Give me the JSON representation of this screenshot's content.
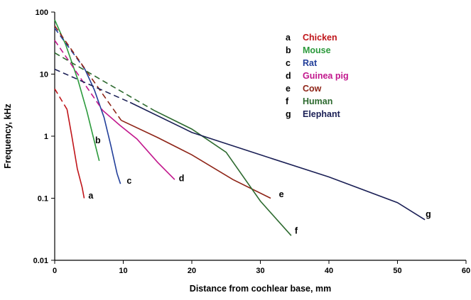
{
  "chart_data": {
    "type": "line",
    "xlabel": "Distance from cochlear base, mm",
    "ylabel": "Frequency, kHz",
    "xlim": [
      0,
      60
    ],
    "ylim": [
      0.01,
      100
    ],
    "yscale": "log",
    "x_ticks": [
      0,
      10,
      20,
      30,
      40,
      50,
      60
    ],
    "y_ticks": [
      0.01,
      0.1,
      1,
      10,
      100
    ],
    "x_tick_labels": [
      "0",
      "10",
      "20",
      "30",
      "40",
      "50",
      "60"
    ],
    "y_tick_labels": [
      "0.01",
      "0.1",
      "1",
      "10",
      "100"
    ],
    "grid": false,
    "legend_position": "top-right",
    "series": [
      {
        "letter": "a",
        "name": "Chicken",
        "color": "#c0151a",
        "dashed": [
          [
            0,
            5.8
          ],
          [
            1.8,
            2.7
          ]
        ],
        "solid": [
          [
            1.8,
            2.7
          ],
          [
            2.5,
            1.0
          ],
          [
            3.3,
            0.3
          ],
          [
            4.0,
            0.15
          ],
          [
            4.3,
            0.1
          ]
        ]
      },
      {
        "letter": "b",
        "name": "Mouse",
        "color": "#2c9a3c",
        "dashed": [],
        "solid": [
          [
            0,
            75
          ],
          [
            1.6,
            30
          ],
          [
            3.4,
            8
          ],
          [
            4.7,
            2.5
          ],
          [
            5.6,
            1.0
          ],
          [
            6.5,
            0.4
          ]
        ]
      },
      {
        "letter": "c",
        "name": "Rat",
        "color": "#223f9a",
        "dashed": [
          [
            0,
            55
          ],
          [
            4.4,
            12
          ]
        ],
        "solid": [
          [
            4.4,
            12
          ],
          [
            5.8,
            5.5
          ],
          [
            7.2,
            2.0
          ],
          [
            8.2,
            0.7
          ],
          [
            9.1,
            0.25
          ],
          [
            9.6,
            0.17
          ]
        ]
      },
      {
        "letter": "d",
        "name": "Guinea pig",
        "color": "#c2178d",
        "dashed": [
          [
            0,
            35
          ],
          [
            7,
            2.6
          ]
        ],
        "solid": [
          [
            7,
            2.6
          ],
          [
            9.5,
            1.5
          ],
          [
            12,
            0.9
          ],
          [
            15,
            0.38
          ],
          [
            17.5,
            0.2
          ]
        ]
      },
      {
        "letter": "e",
        "name": "Cow",
        "color": "#8e2417",
        "dashed": [
          [
            0,
            60
          ],
          [
            9.7,
            1.8
          ]
        ],
        "solid": [
          [
            9.7,
            1.8
          ],
          [
            15,
            0.95
          ],
          [
            20,
            0.5
          ],
          [
            26,
            0.2
          ],
          [
            31.5,
            0.1
          ]
        ]
      },
      {
        "letter": "f",
        "name": "Human",
        "color": "#2d6a2f",
        "dashed": [
          [
            0,
            22
          ],
          [
            14.5,
            2.6
          ]
        ],
        "solid": [
          [
            14.5,
            2.6
          ],
          [
            20,
            1.3
          ],
          [
            25,
            0.55
          ],
          [
            30,
            0.09
          ],
          [
            34.5,
            0.025
          ]
        ]
      },
      {
        "letter": "g",
        "name": "Elephant",
        "color": "#1a1f55",
        "dashed": [
          [
            0,
            12
          ],
          [
            11,
            3.5
          ]
        ],
        "solid": [
          [
            11,
            3.5
          ],
          [
            20,
            1.15
          ],
          [
            30,
            0.5
          ],
          [
            40,
            0.22
          ],
          [
            50,
            0.085
          ],
          [
            54,
            0.045
          ]
        ]
      }
    ],
    "curve_label_anchors": {
      "a": [
        4.6,
        0.11
      ],
      "b": [
        5.6,
        0.85
      ],
      "c": [
        10.2,
        0.19
      ],
      "d": [
        17.8,
        0.21
      ],
      "e": [
        32.4,
        0.115
      ],
      "f": [
        34.7,
        0.03
      ],
      "g": [
        53.8,
        0.055
      ]
    }
  }
}
